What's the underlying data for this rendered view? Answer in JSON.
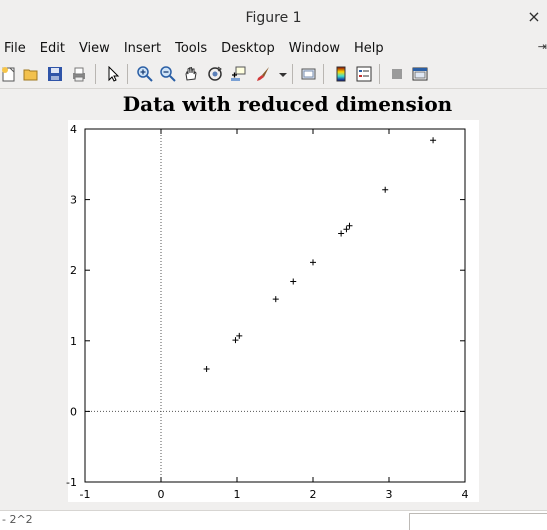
{
  "window": {
    "title": "Figure 1",
    "close_glyph": "×"
  },
  "menu": {
    "items": [
      {
        "id": "file",
        "label": "File"
      },
      {
        "id": "edit",
        "label": "Edit"
      },
      {
        "id": "view",
        "label": "View"
      },
      {
        "id": "insert",
        "label": "Insert"
      },
      {
        "id": "tools",
        "label": "Tools"
      },
      {
        "id": "desktop",
        "label": "Desktop"
      },
      {
        "id": "window",
        "label": "Window"
      },
      {
        "id": "help",
        "label": "Help"
      }
    ],
    "overflow_glyph": "⇥"
  },
  "toolbar": {
    "icons": [
      "new-figure-icon",
      "open-folder-icon",
      "save-icon",
      "print-icon",
      "pointer-icon",
      "zoom-in-icon",
      "zoom-out-icon",
      "pan-icon",
      "rotate-icon",
      "data-cursor-icon",
      "brush-icon",
      "dropdown-icon",
      "link-icon",
      "colorbar-icon",
      "legend-icon",
      "hide-plot-tools-icon",
      "show-plot-tools-icon"
    ]
  },
  "bottom": {
    "text": "- 2^2"
  },
  "chart_data": {
    "type": "scatter",
    "title": "Data with reduced dimension",
    "xlabel": "",
    "ylabel": "",
    "xlim": [
      -1,
      4
    ],
    "ylim": [
      -1,
      4
    ],
    "xticks": [
      -1,
      0,
      1,
      2,
      3,
      4
    ],
    "yticks": [
      -1,
      0,
      1,
      2,
      3,
      4
    ],
    "grid": false,
    "zero_lines": true,
    "marker": "+",
    "series": [
      {
        "points": [
          [
            0.6,
            0.6
          ],
          [
            0.98,
            1.01
          ],
          [
            1.03,
            1.07
          ],
          [
            1.51,
            1.59
          ],
          [
            1.74,
            1.84
          ],
          [
            2.0,
            2.11
          ],
          [
            2.37,
            2.52
          ],
          [
            2.44,
            2.58
          ],
          [
            2.48,
            2.63
          ],
          [
            2.95,
            3.14
          ],
          [
            3.58,
            3.84
          ]
        ]
      }
    ]
  }
}
